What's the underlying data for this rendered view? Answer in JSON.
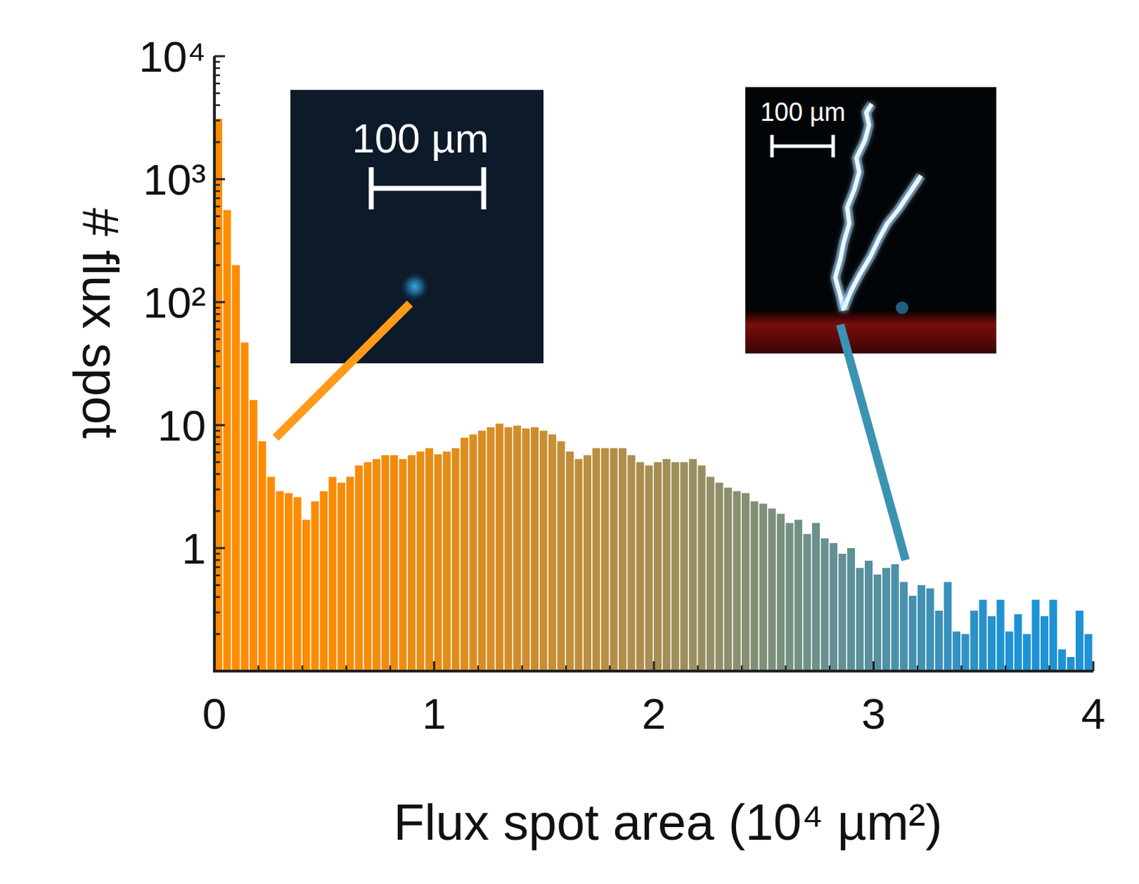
{
  "chart_data": {
    "type": "histogram",
    "x_label": "Flux spot area (10⁴ µm²)",
    "y_label": "# flux spot",
    "log": "y",
    "bins": [
      0,
      0.04,
      0.08,
      0.12,
      0.16,
      0.2,
      0.24,
      0.28,
      0.32,
      0.36,
      0.4,
      0.44,
      0.48,
      0.52,
      0.56,
      0.6,
      0.64,
      0.68,
      0.72,
      0.76,
      0.8,
      0.84,
      0.88,
      0.92,
      0.96,
      1,
      1.04,
      1.08,
      1.12,
      1.16,
      1.2,
      1.24,
      1.28,
      1.32,
      1.36,
      1.4,
      1.44,
      1.48,
      1.52,
      1.56,
      1.6,
      1.64,
      1.68,
      1.72,
      1.76,
      1.8,
      1.84,
      1.88,
      1.92,
      1.96,
      2,
      2.04,
      2.08,
      2.12,
      2.16,
      2.2,
      2.24,
      2.28,
      2.32,
      2.36,
      2.4,
      2.44,
      2.48,
      2.52,
      2.56,
      2.6,
      2.64,
      2.68,
      2.72,
      2.76,
      2.8,
      2.84,
      2.88,
      2.92,
      2.96,
      3,
      3.04,
      3.08,
      3.12,
      3.16,
      3.2,
      3.24,
      3.28,
      3.32,
      3.36,
      3.4,
      3.44,
      3.48,
      3.52,
      3.56,
      3.6,
      3.64,
      3.68,
      3.72,
      3.76,
      3.8,
      3.84,
      3.88,
      3.92,
      3.96,
      4
    ],
    "values": [
      3100,
      560,
      200,
      47,
      16,
      7.4,
      3.8,
      2.9,
      2.8,
      2.6,
      1.7,
      2.4,
      2.9,
      3.8,
      3.4,
      3.8,
      4.7,
      5.0,
      5.3,
      5.7,
      5.7,
      5.3,
      5.7,
      6.1,
      6.5,
      5.8,
      6.1,
      6.5,
      7.9,
      8.4,
      9.0,
      9.6,
      10.3,
      9.6,
      9.9,
      9.4,
      9.6,
      9.0,
      8.4,
      7.4,
      6.1,
      5.3,
      5.7,
      6.5,
      6.5,
      6.5,
      6.5,
      5.7,
      5.0,
      4.7,
      5.0,
      5.3,
      5.0,
      5.0,
      5.3,
      4.7,
      3.8,
      3.4,
      3.1,
      2.9,
      2.8,
      2.4,
      2.3,
      2.1,
      1.9,
      1.6,
      1.7,
      1.3,
      1.6,
      1.2,
      1.1,
      0.9,
      1.0,
      0.69,
      0.79,
      0.61,
      0.69,
      0.74,
      0.53,
      0.41,
      0.5,
      0.47,
      0.31,
      0.53,
      0.21,
      0.2,
      0.31,
      0.38,
      0.28,
      0.38,
      0.21,
      0.29,
      0.2,
      0.38,
      0.28,
      0.38,
      0.15,
      0.13,
      0.31,
      0.2
    ],
    "xlim": [
      0,
      4
    ],
    "xticks": [
      0,
      1,
      2,
      3,
      4
    ],
    "ylim": [
      0.1,
      10000
    ],
    "yticks": [
      1,
      10,
      {
        "value": 100,
        "label": "10²"
      },
      {
        "value": 1000,
        "label": "10³"
      },
      {
        "value": 10000,
        "label": "10⁴"
      }
    ],
    "annotations": [
      {
        "text": "100 µm"
      },
      {
        "text": "100 µm"
      }
    ]
  }
}
